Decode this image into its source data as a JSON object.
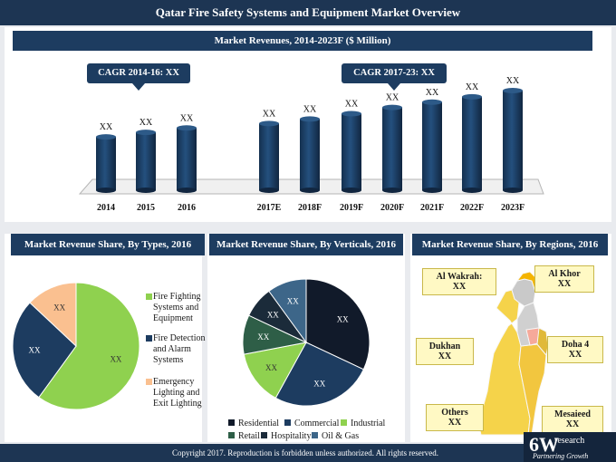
{
  "header": {
    "title": "Qatar Fire Safety Systems and Equipment Market Overview"
  },
  "revenue": {
    "title": "Market Revenues, 2014-2023F ($ Million)"
  },
  "callouts": {
    "cagr1": "CAGR 2014-16: XX",
    "cagr2": "CAGR 2017-23: XX"
  },
  "sections": {
    "types": "Market Revenue Share, By Types, 2016",
    "verticals": "Market Revenue Share, By Verticals, 2016",
    "regions": "Market Revenue Share, By Regions, 2016"
  },
  "colors": {
    "navy": "#1d3c60",
    "bar": "#1b3a5e",
    "green": "#8fd14f",
    "peach": "#fac090"
  },
  "chart_data": [
    {
      "type": "bar",
      "title": "Market Revenues, 2014-2023F ($ Million)",
      "categories": [
        "2014",
        "2015",
        "2016",
        "2017E",
        "2018F",
        "2019F",
        "2020F",
        "2021F",
        "2022F",
        "2023F"
      ],
      "values": [
        60,
        65,
        70,
        75,
        80,
        86,
        93,
        99,
        105,
        112
      ],
      "data_labels": [
        "XX",
        "XX",
        "XX",
        "XX",
        "XX",
        "XX",
        "XX",
        "XX",
        "XX",
        "XX"
      ],
      "ylim": [
        0,
        130
      ],
      "note": "values are illustrative relative heights; the chart labels every bar as XX"
    },
    {
      "type": "pie",
      "title": "Market Revenue Share, By Types, 2016",
      "labels": [
        "Fire Fighting Systems and Equipment",
        "Fire Detection and Alarm Systems",
        "Emergency Lighting and Exit Lighting"
      ],
      "values": [
        60,
        27,
        13
      ],
      "data_labels": [
        "XX",
        "XX",
        "XX"
      ],
      "colors": [
        "#8fd14f",
        "#1d3c60",
        "#fac090"
      ],
      "legend_position": "right"
    },
    {
      "type": "pie",
      "title": "Market Revenue Share, By Verticals, 2016",
      "labels": [
        "Residential",
        "Commercial",
        "Industrial",
        "Retail",
        "Hospitality",
        "Oil & Gas"
      ],
      "values": [
        32,
        26,
        14,
        10,
        8,
        10
      ],
      "data_labels": [
        "XX",
        "XX",
        "XX",
        "XX",
        "XX",
        "XX"
      ],
      "colors": [
        "#111a2a",
        "#1d3c60",
        "#8fd14f",
        "#2e5e47",
        "#1b2b3a",
        "#3d6689"
      ],
      "legend_position": "bottom"
    }
  ],
  "regions": [
    {
      "name": "Al Wakrah:",
      "value": "XX"
    },
    {
      "name": "Al Khor",
      "value": "XX"
    },
    {
      "name": "Dukhan",
      "value": "XX"
    },
    {
      "name": "Doha 4",
      "value": "XX"
    },
    {
      "name": "Others",
      "value": "XX"
    },
    {
      "name": "Mesaieed",
      "value": "XX"
    }
  ],
  "footer": {
    "copyright": "Copyright 2017. Reproduction is forbidden unless authorized. All rights reserved.",
    "logo_main": "6W",
    "logo_sub": "research",
    "logo_tag": "Partnering Growth"
  }
}
